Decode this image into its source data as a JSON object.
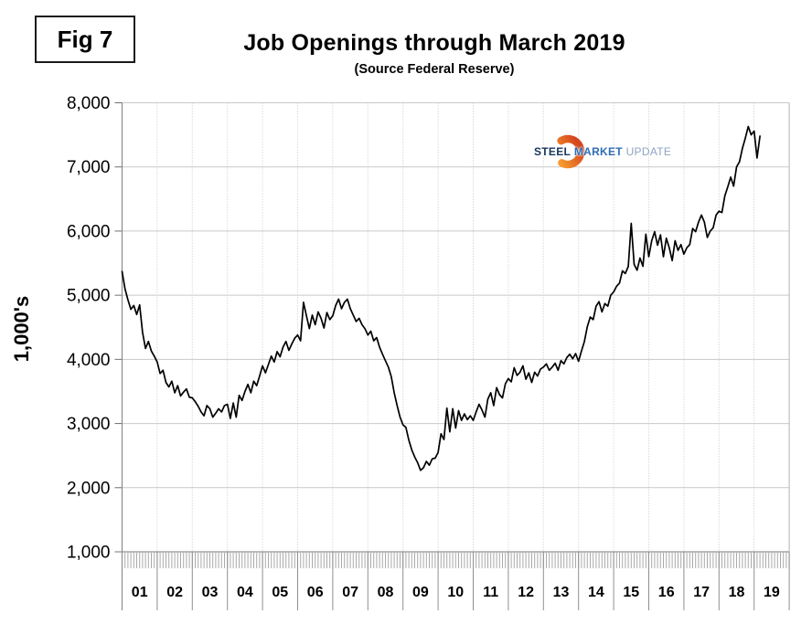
{
  "fig_label": "Fig 7",
  "title": "Job Openings through March 2019",
  "subtitle": "(Source Federal Reserve)",
  "y_axis_unit_label": "1,000's",
  "logo": {
    "word1": "STEEL",
    "word2": "MARKET",
    "word3": "UPDATE",
    "word1_color": "#17365d",
    "word2_color": "#2e6db4",
    "word3_color": "#8ea4c2",
    "arc_color_top": "#f79b2e",
    "arc_color_bottom": "#d6461e"
  },
  "chart_data": {
    "type": "line",
    "title": "Job Openings through March 2019",
    "subtitle": "(Source Federal Reserve)",
    "ylabel": "1,000's",
    "ylim": [
      1000,
      8000
    ],
    "y_ticks": [
      1000,
      2000,
      3000,
      4000,
      5000,
      6000,
      7000,
      8000
    ],
    "y_tick_labels": [
      "1,000",
      "2,000",
      "3,000",
      "4,000",
      "5,000",
      "6,000",
      "7,000",
      "8,000"
    ],
    "x_tick_labels": [
      "01",
      "02",
      "03",
      "04",
      "05",
      "06",
      "07",
      "08",
      "09",
      "10",
      "11",
      "12",
      "13",
      "14",
      "15",
      "16",
      "17",
      "18",
      "19"
    ],
    "grid": true,
    "legend": "none",
    "line_color": "#000000",
    "series": [
      {
        "name": "Job Openings (1,000's)",
        "frequency": "monthly",
        "start": "2001-01",
        "end": "2019-03",
        "values": [
          5370,
          5100,
          4930,
          4780,
          4840,
          4700,
          4850,
          4420,
          4170,
          4280,
          4130,
          4050,
          3960,
          3780,
          3830,
          3640,
          3570,
          3660,
          3480,
          3590,
          3430,
          3490,
          3540,
          3410,
          3400,
          3340,
          3270,
          3180,
          3120,
          3280,
          3230,
          3100,
          3160,
          3230,
          3180,
          3280,
          3300,
          3080,
          3320,
          3100,
          3440,
          3360,
          3500,
          3610,
          3480,
          3660,
          3590,
          3740,
          3900,
          3790,
          3920,
          4050,
          3960,
          4120,
          4040,
          4190,
          4280,
          4140,
          4240,
          4330,
          4380,
          4290,
          4890,
          4680,
          4480,
          4690,
          4540,
          4740,
          4640,
          4490,
          4730,
          4620,
          4680,
          4840,
          4940,
          4790,
          4890,
          4940,
          4790,
          4690,
          4590,
          4640,
          4540,
          4480,
          4380,
          4440,
          4290,
          4340,
          4190,
          4080,
          3980,
          3880,
          3730,
          3480,
          3280,
          3100,
          2980,
          2940,
          2740,
          2590,
          2480,
          2390,
          2270,
          2310,
          2410,
          2350,
          2450,
          2460,
          2550,
          2840,
          2750,
          3240,
          2870,
          3230,
          2930,
          3200,
          3050,
          3150,
          3060,
          3120,
          3050,
          3180,
          3300,
          3210,
          3100,
          3380,
          3480,
          3280,
          3560,
          3450,
          3400,
          3620,
          3700,
          3650,
          3870,
          3750,
          3800,
          3900,
          3690,
          3790,
          3640,
          3800,
          3740,
          3850,
          3880,
          3930,
          3830,
          3880,
          3940,
          3830,
          3980,
          3930,
          4030,
          4080,
          4010,
          4090,
          3970,
          4130,
          4280,
          4510,
          4660,
          4620,
          4830,
          4900,
          4740,
          4870,
          4830,
          5000,
          5050,
          5140,
          5190,
          5380,
          5340,
          5450,
          6120,
          5480,
          5390,
          5580,
          5450,
          5950,
          5600,
          5850,
          5990,
          5780,
          5940,
          5600,
          5890,
          5740,
          5540,
          5850,
          5700,
          5790,
          5640,
          5740,
          5790,
          6040,
          5990,
          6140,
          6250,
          6140,
          5900,
          6000,
          6050,
          6250,
          6310,
          6290,
          6550,
          6690,
          6840,
          6700,
          7000,
          7080,
          7290,
          7450,
          7630,
          7500,
          7560,
          7140,
          7480
        ]
      }
    ]
  }
}
